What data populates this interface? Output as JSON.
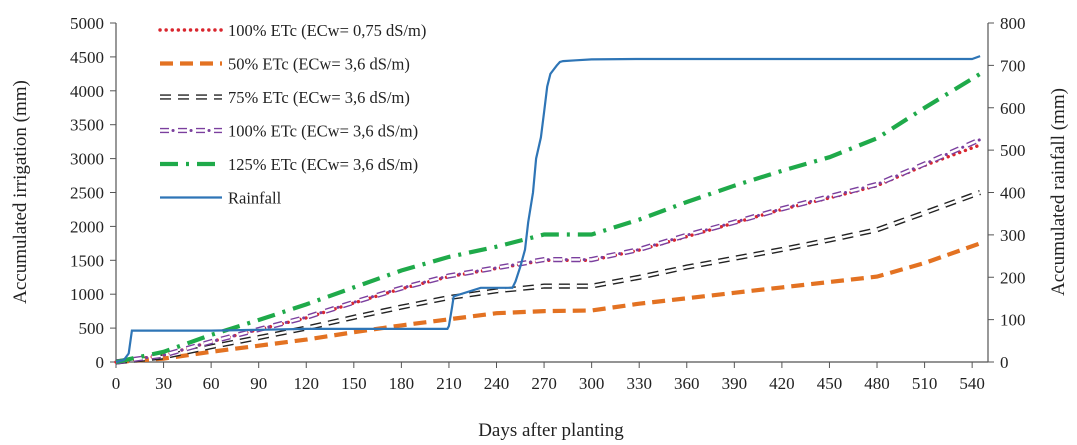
{
  "chart_data": {
    "type": "line",
    "xlabel": "Days after planting",
    "ylabel_left": "Accumulated irrigation  (mm)",
    "ylabel_right": "Accumulated rainfall  (mm)",
    "x_ticks": [
      "0",
      "30",
      "60",
      "90",
      "120",
      "150",
      "180",
      "210",
      "240",
      "270",
      "300",
      "330",
      "360",
      "390",
      "420",
      "450",
      "480",
      "510",
      "540"
    ],
    "y_left_ticks": [
      "0",
      "500",
      "1000",
      "1500",
      "2000",
      "2500",
      "3000",
      "3500",
      "4000",
      "4500",
      "5000"
    ],
    "y_right_ticks": [
      "0",
      "100",
      "200",
      "300",
      "400",
      "500",
      "600",
      "700",
      "800"
    ],
    "xlim": [
      0,
      550
    ],
    "ylim_left": [
      0,
      5000
    ],
    "ylim_right": [
      0,
      800
    ],
    "grid": false,
    "legend_position": "top-left",
    "series": [
      {
        "name": "100% ETc (ECw= 0,75 dS/m)",
        "axis": "left",
        "color": "#d9262e",
        "style": "dotted",
        "x": [
          0,
          30,
          60,
          90,
          120,
          150,
          180,
          210,
          240,
          270,
          300,
          330,
          360,
          390,
          420,
          450,
          480,
          510,
          545
        ],
        "y": [
          0,
          100,
          300,
          480,
          650,
          870,
          1080,
          1260,
          1380,
          1500,
          1500,
          1650,
          1850,
          2050,
          2250,
          2420,
          2600,
          2900,
          3200
        ]
      },
      {
        "name": "50% ETc (ECw= 3,6 dS/m)",
        "axis": "left",
        "color": "#e37222",
        "style": "dashed",
        "x": [
          0,
          30,
          60,
          90,
          120,
          150,
          180,
          210,
          240,
          270,
          300,
          330,
          360,
          390,
          420,
          450,
          480,
          510,
          545
        ],
        "y": [
          0,
          50,
          150,
          240,
          330,
          440,
          540,
          630,
          720,
          750,
          760,
          860,
          940,
          1020,
          1100,
          1180,
          1260,
          1460,
          1750
        ]
      },
      {
        "name": "75% ETc (ECw= 3,6 dS/m)",
        "axis": "left",
        "color": "#222222",
        "style": "ring-dash",
        "x": [
          0,
          30,
          60,
          90,
          120,
          150,
          180,
          210,
          240,
          270,
          300,
          330,
          360,
          390,
          420,
          450,
          480,
          510,
          545
        ],
        "y": [
          0,
          75,
          225,
          360,
          500,
          660,
          810,
          950,
          1050,
          1120,
          1120,
          1250,
          1400,
          1530,
          1660,
          1800,
          1950,
          2200,
          2500
        ]
      },
      {
        "name": "100% ETc (ECw= 3,6 dS/m)",
        "axis": "left",
        "color": "#7b3f9e",
        "style": "ring-dot",
        "x": [
          0,
          30,
          60,
          90,
          120,
          150,
          180,
          210,
          240,
          270,
          300,
          330,
          360,
          390,
          420,
          450,
          480,
          510,
          545
        ],
        "y": [
          0,
          100,
          300,
          480,
          660,
          880,
          1090,
          1270,
          1390,
          1510,
          1510,
          1660,
          1870,
          2060,
          2260,
          2440,
          2620,
          2920,
          3280
        ]
      },
      {
        "name": "125% ETc (ECw= 3,6 dS/m)",
        "axis": "left",
        "color": "#1faa4a",
        "style": "dashdot",
        "x": [
          0,
          30,
          60,
          90,
          120,
          150,
          180,
          210,
          240,
          270,
          300,
          330,
          360,
          390,
          420,
          450,
          480,
          510,
          545
        ],
        "y": [
          0,
          150,
          400,
          620,
          850,
          1100,
          1350,
          1550,
          1700,
          1880,
          1880,
          2100,
          2360,
          2600,
          2820,
          3020,
          3300,
          3750,
          4250
        ]
      },
      {
        "name": "Rainfall",
        "axis": "right",
        "color": "#2e75b6",
        "style": "solid",
        "x": [
          0,
          5,
          8,
          10,
          30,
          60,
          90,
          120,
          150,
          180,
          209,
          210,
          212,
          213,
          230,
          250,
          252,
          255,
          258,
          260,
          263,
          265,
          268,
          270,
          272,
          274,
          276,
          278,
          280,
          282,
          290,
          300,
          330,
          360,
          390,
          420,
          450,
          480,
          510,
          540,
          545
        ],
        "y": [
          0,
          5,
          20,
          74,
          74,
          74,
          76,
          78,
          78,
          78,
          78,
          85,
          130,
          155,
          175,
          175,
          190,
          225,
          265,
          330,
          400,
          480,
          530,
          590,
          650,
          680,
          690,
          700,
          708,
          710,
          712,
          714,
          715,
          715,
          715,
          715,
          715,
          715,
          715,
          715,
          722
        ]
      }
    ]
  }
}
